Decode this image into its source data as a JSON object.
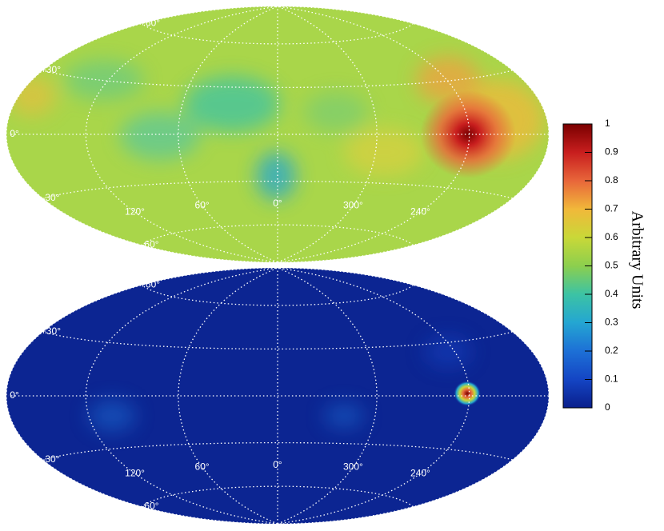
{
  "chart_data": [
    {
      "type": "skymap",
      "lat_ticks": [
        {
          "value": 60,
          "label": "+60°"
        },
        {
          "value": 30,
          "label": "+30°"
        },
        {
          "value": 0,
          "label": "0°"
        },
        {
          "value": -30,
          "label": "-30°"
        },
        {
          "value": -60,
          "label": "-60°"
        }
      ],
      "lon_ticks": [
        {
          "value": 120,
          "label": "120°"
        },
        {
          "value": 60,
          "label": "60°"
        },
        {
          "value": 0,
          "label": "0°"
        },
        {
          "value": 300,
          "label": "300°"
        },
        {
          "value": 240,
          "label": "240°"
        }
      ]
    },
    {
      "type": "skymap",
      "lat_ticks": [
        {
          "value": 60,
          "label": "+60°"
        },
        {
          "value": 30,
          "label": "+30°"
        },
        {
          "value": 0,
          "label": "0°"
        },
        {
          "value": -30,
          "label": "-30°"
        },
        {
          "value": -60,
          "label": "-60°"
        }
      ],
      "lon_ticks": [
        {
          "value": 120,
          "label": "120°"
        },
        {
          "value": 60,
          "label": "60°"
        },
        {
          "value": 0,
          "label": "0°"
        },
        {
          "value": 300,
          "label": "300°"
        },
        {
          "value": 240,
          "label": "240°"
        }
      ]
    },
    {
      "type": "colorbar",
      "label": "Arbitrary Units",
      "ylim": [
        0,
        1
      ],
      "yticks": [
        0,
        0.1,
        0.2,
        0.3,
        0.4,
        0.5,
        0.6,
        0.7,
        0.8,
        0.9,
        1
      ],
      "colors": [
        "#0a1f8c",
        "#1445c4",
        "#1d70d6",
        "#24a6d2",
        "#3cc3a4",
        "#8ccf4e",
        "#c9d838",
        "#f1b83a",
        "#e8663a",
        "#c81e1e",
        "#7a0000"
      ]
    }
  ]
}
